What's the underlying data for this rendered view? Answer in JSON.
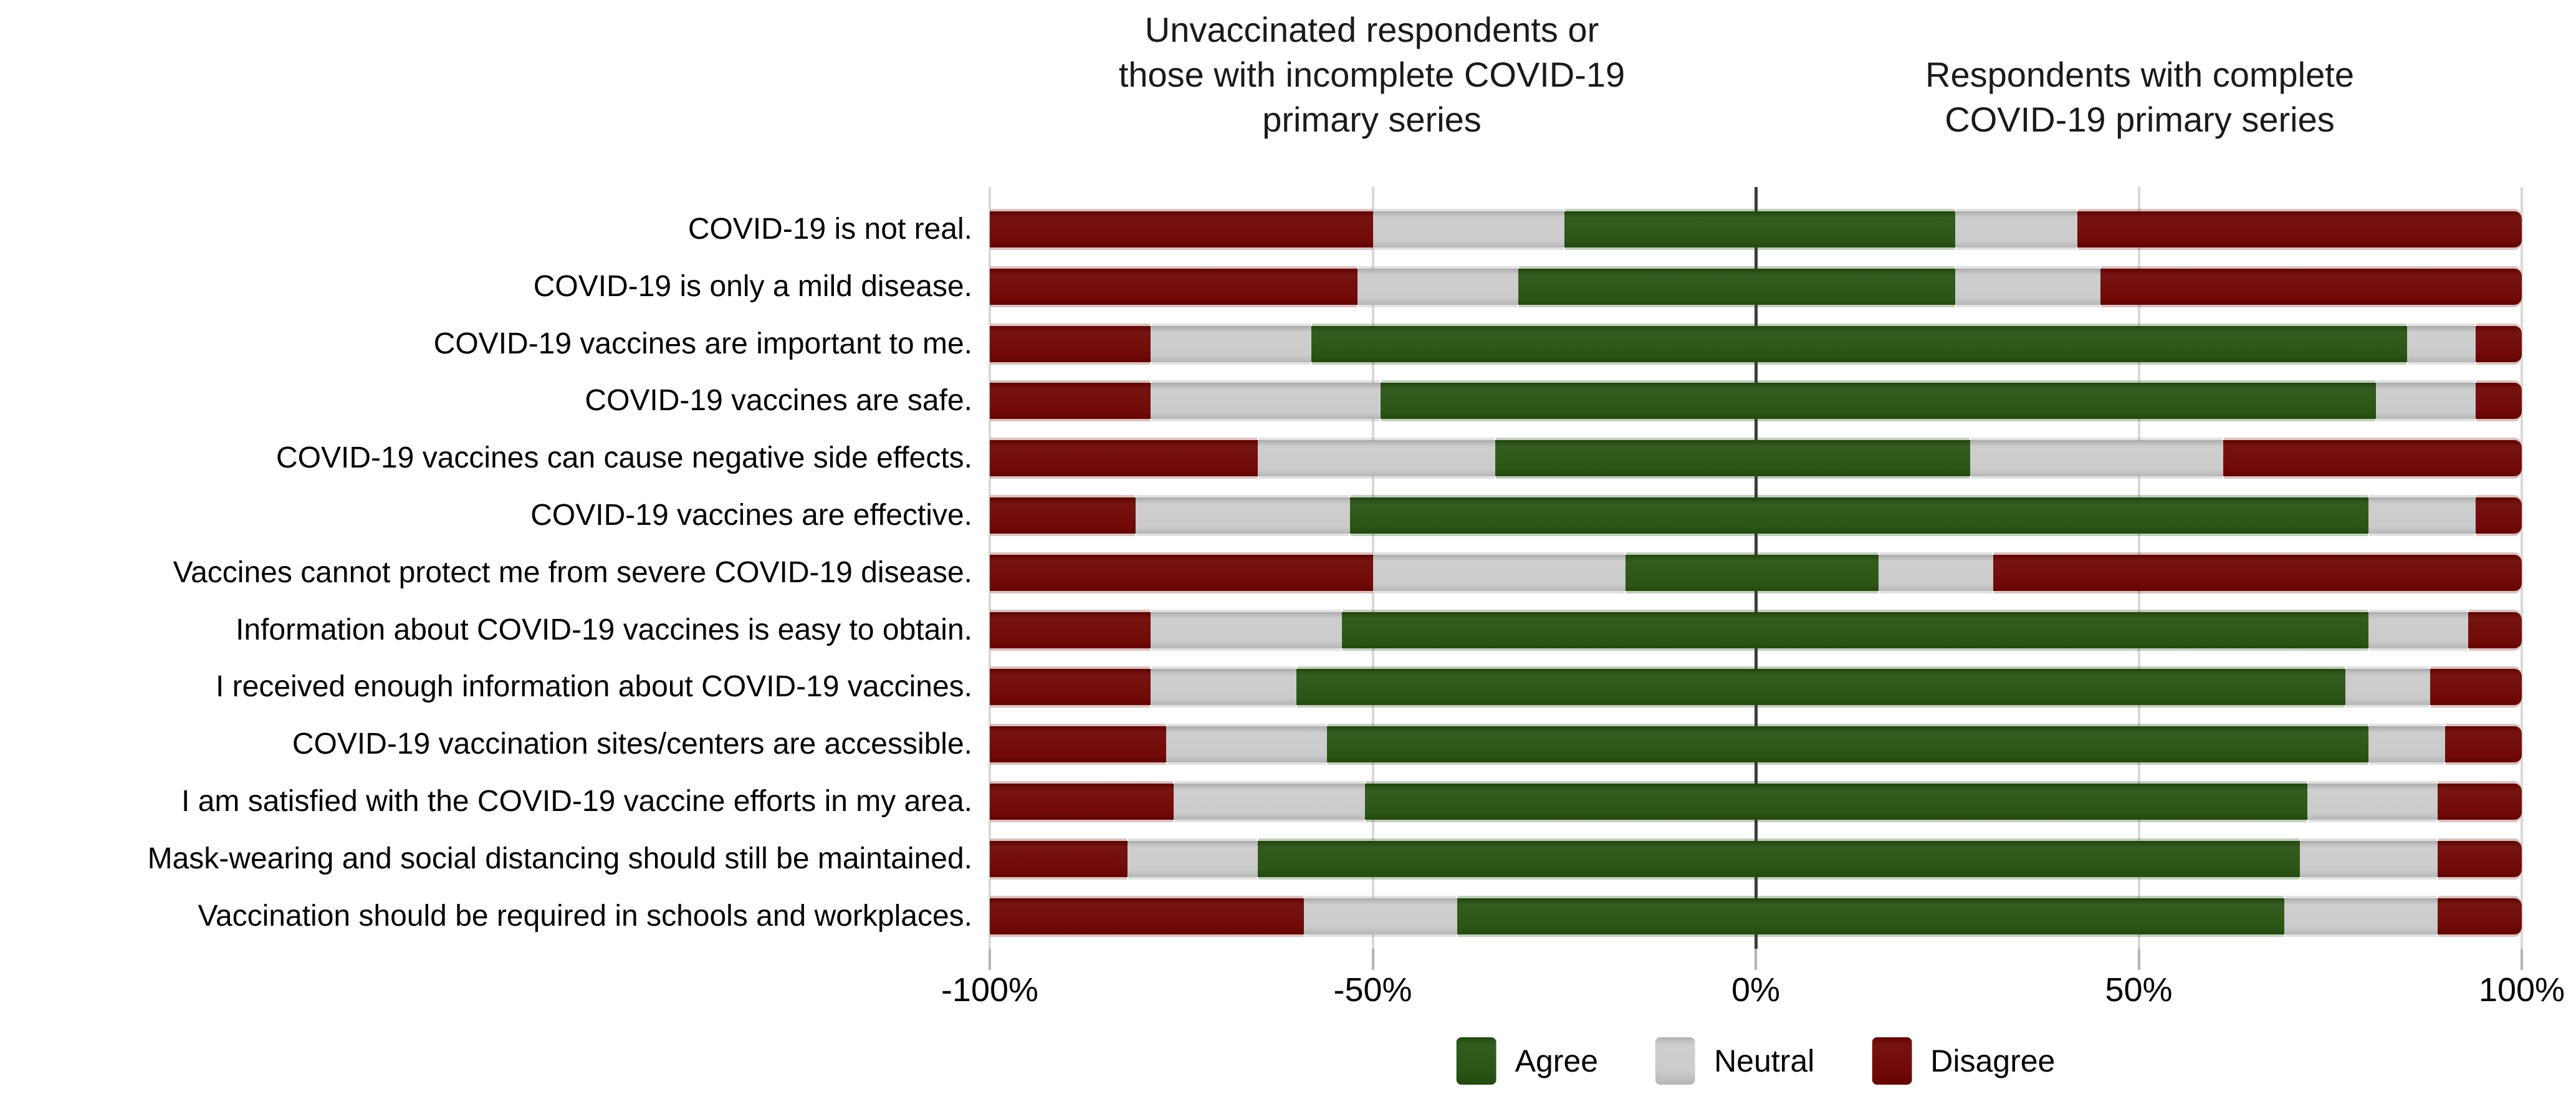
{
  "chart_data": {
    "type": "bar",
    "variant": "diverging-stacked-likert",
    "title_left_lines": [
      "Unvaccinated respondents or",
      "those with incomplete COVID-19",
      "primary series"
    ],
    "title_right_lines": [
      "Respondents with complete",
      "COVID-19 primary series"
    ],
    "legend": [
      "Agree",
      "Neutral",
      "Disagree"
    ],
    "colors": {
      "agree": "#275211",
      "neutral": "#cbcbcb",
      "disagree": "#6e0502"
    },
    "x_ticks": [
      "-100%",
      "-50%",
      "0%",
      "50%",
      "100%"
    ],
    "xlim": [
      -100,
      100
    ],
    "grid": "vertical-only",
    "legend_position": "bottom-center",
    "rows": [
      {
        "label": "COVID-19 is not real.",
        "left": {
          "disagree": 50,
          "neutral": 25,
          "agree": 25
        },
        "right": {
          "agree": 26,
          "neutral": 16,
          "disagree": 58
        }
      },
      {
        "label": "COVID-19 is only a mild disease.",
        "left": {
          "disagree": 48,
          "neutral": 21,
          "agree": 31
        },
        "right": {
          "agree": 26,
          "neutral": 19,
          "disagree": 55
        }
      },
      {
        "label": "COVID-19 vaccines are important to me.",
        "left": {
          "disagree": 21,
          "neutral": 21,
          "agree": 58
        },
        "right": {
          "agree": 85,
          "neutral": 9,
          "disagree": 6
        }
      },
      {
        "label": "COVID-19 vaccines are safe.",
        "left": {
          "disagree": 21,
          "neutral": 30,
          "agree": 49
        },
        "right": {
          "agree": 81,
          "neutral": 13,
          "disagree": 6
        }
      },
      {
        "label": "COVID-19 vaccines can cause negative side effects.",
        "left": {
          "disagree": 35,
          "neutral": 31,
          "agree": 34
        },
        "right": {
          "agree": 28,
          "neutral": 33,
          "disagree": 39
        }
      },
      {
        "label": "COVID-19 vaccines are effective.",
        "left": {
          "disagree": 19,
          "neutral": 28,
          "agree": 53
        },
        "right": {
          "agree": 80,
          "neutral": 14,
          "disagree": 6
        }
      },
      {
        "label": "Vaccines cannot protect me from severe COVID-19 disease.",
        "left": {
          "disagree": 50,
          "neutral": 33,
          "agree": 17
        },
        "right": {
          "agree": 16,
          "neutral": 15,
          "disagree": 69
        }
      },
      {
        "label": "Information about COVID-19 vaccines is easy to obtain.",
        "left": {
          "disagree": 21,
          "neutral": 25,
          "agree": 54
        },
        "right": {
          "agree": 80,
          "neutral": 13,
          "disagree": 7
        }
      },
      {
        "label": "I received enough information about COVID-19 vaccines.",
        "left": {
          "disagree": 21,
          "neutral": 19,
          "agree": 60
        },
        "right": {
          "agree": 77,
          "neutral": 11,
          "disagree": 12
        }
      },
      {
        "label": "COVID-19 vaccination sites/centers are accessible.",
        "left": {
          "disagree": 23,
          "neutral": 21,
          "agree": 56
        },
        "right": {
          "agree": 80,
          "neutral": 10,
          "disagree": 10
        }
      },
      {
        "label": "I am satisfied with the COVID-19 vaccine efforts in my area.",
        "left": {
          "disagree": 24,
          "neutral": 25,
          "agree": 51
        },
        "right": {
          "agree": 72,
          "neutral": 17,
          "disagree": 11
        }
      },
      {
        "label": "Mask-wearing and social distancing should still be maintained.",
        "left": {
          "disagree": 18,
          "neutral": 17,
          "agree": 65
        },
        "right": {
          "agree": 71,
          "neutral": 18,
          "disagree": 11
        }
      },
      {
        "label": "Vaccination should be required in schools and workplaces.",
        "left": {
          "disagree": 41,
          "neutral": 20,
          "agree": 39
        },
        "right": {
          "agree": 69,
          "neutral": 20,
          "disagree": 11
        }
      }
    ]
  }
}
